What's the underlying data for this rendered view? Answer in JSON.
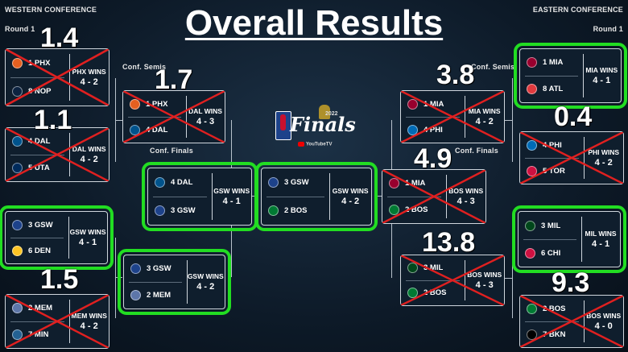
{
  "title": "Overall Results",
  "west_label": "WESTERN CONFERENCE",
  "east_label": "EASTERN CONFERENCE",
  "round1_left": "Round 1",
  "round1_right": "Round 1",
  "conf_semis_left": "Conf. Semis",
  "conf_semis_right": "Conf. Semis",
  "conf_finals_left": "Conf. Finals",
  "conf_finals_right": "Conf. Finals",
  "finals_text": "Finals",
  "finals_year": "2022",
  "channel": "YouTubeTV",
  "scores": {
    "w_r1a": "1.4",
    "w_r1b": "1.1",
    "w_r1d": "1.5",
    "w_semi": "1.7",
    "e_semi": "3.8",
    "e_r1b": "0.4",
    "e_cf": "4.9",
    "e_semi2": "13.8",
    "e_r1d": "9.3"
  },
  "series": {
    "w_r1a": {
      "t1": "1 PHX",
      "t2": "8 NOP",
      "winner": "PHX WINS",
      "score": "4 - 2",
      "c1": "#e56020",
      "c2": "#0c2340"
    },
    "w_r1b": {
      "t1": "4 DAL",
      "t2": "5 UTA",
      "winner": "DAL WINS",
      "score": "4 - 2",
      "c1": "#00538c",
      "c2": "#002b5c"
    },
    "w_r1c": {
      "t1": "3 GSW",
      "t2": "6 DEN",
      "winner": "GSW WINS",
      "score": "4 - 1",
      "c1": "#1d428a",
      "c2": "#fec524"
    },
    "w_r1d": {
      "t1": "2 MEM",
      "t2": "7 MIN",
      "winner": "MEM WINS",
      "score": "4 - 2",
      "c1": "#5d76a9",
      "c2": "#236192"
    },
    "w_sf1": {
      "t1": "1 PHX",
      "t2": "4 DAL",
      "winner": "DAL WINS",
      "score": "4 - 3",
      "c1": "#e56020",
      "c2": "#00538c"
    },
    "w_sf2": {
      "t1": "3 GSW",
      "t2": "2 MEM",
      "winner": "GSW WINS",
      "score": "4 - 2",
      "c1": "#1d428a",
      "c2": "#5d76a9"
    },
    "w_cf": {
      "t1": "4 DAL",
      "t2": "3 GSW",
      "winner": "GSW WINS",
      "score": "4 - 1",
      "c1": "#00538c",
      "c2": "#1d428a"
    },
    "finals": {
      "t1": "3 GSW",
      "t2": "2 BOS",
      "winner": "GSW WINS",
      "score": "4 - 2",
      "c1": "#1d428a",
      "c2": "#007a33"
    },
    "e_cf": {
      "t1": "1 MIA",
      "t2": "2 BOS",
      "winner": "BOS WINS",
      "score": "4 - 3",
      "c1": "#98002e",
      "c2": "#007a33"
    },
    "e_sf1": {
      "t1": "1 MIA",
      "t2": "4 PHI",
      "winner": "MIA WINS",
      "score": "4 - 2",
      "c1": "#98002e",
      "c2": "#006bb6"
    },
    "e_sf2": {
      "t1": "3 MIL",
      "t2": "2 BOS",
      "winner": "BOS WINS",
      "score": "4 - 3",
      "c1": "#00471b",
      "c2": "#007a33"
    },
    "e_r1a": {
      "t1": "1 MIA",
      "t2": "8 ATL",
      "winner": "MIA WINS",
      "score": "4 - 1",
      "c1": "#98002e",
      "c2": "#e03a3e"
    },
    "e_r1b": {
      "t1": "4 PHI",
      "t2": "5 TOR",
      "winner": "PHI WINS",
      "score": "4 - 2",
      "c1": "#006bb6",
      "c2": "#ce1141"
    },
    "e_r1c": {
      "t1": "3 MIL",
      "t2": "6 CHI",
      "winner": "MIL WINS",
      "score": "4 - 1",
      "c1": "#00471b",
      "c2": "#ce1141"
    },
    "e_r1d": {
      "t1": "2 BOS",
      "t2": "7 BKN",
      "winner": "BOS WINS",
      "score": "4 - 0",
      "c1": "#007a33",
      "c2": "#000000"
    }
  },
  "colors": {
    "highlight": "#22dd22",
    "cross": "#e02020"
  }
}
